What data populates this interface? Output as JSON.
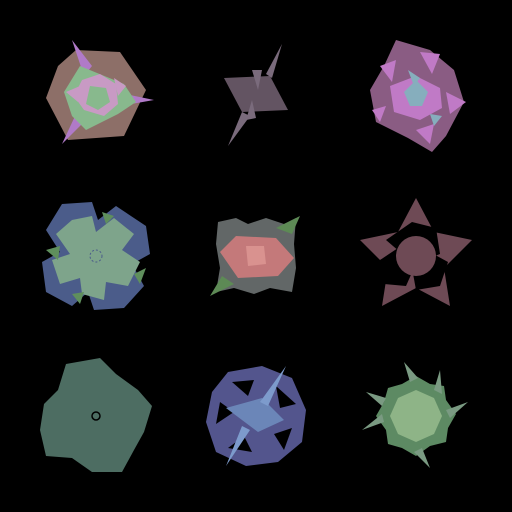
{
  "background_color": "#000000",
  "shapes": [
    {
      "id": "hexagon-rosette",
      "name": "hexagon-rosette-shape",
      "colors": {
        "outer": "#8d6f68",
        "mid": "#c89ac4",
        "inner": "#88b98d",
        "spike": "#b07ac8"
      }
    },
    {
      "id": "spiked-parallelogram",
      "name": "spiked-parallelogram-shape",
      "colors": {
        "body": "#635462",
        "spike": "#7a6b7c"
      }
    },
    {
      "id": "pink-lobed-rosette",
      "name": "pink-lobed-rosette-shape",
      "colors": {
        "outer": "#8a5c83",
        "petal": "#c07ac6",
        "inner": "#86aebd"
      }
    },
    {
      "id": "blue-gear-flower",
      "name": "blue-gear-flower-shape",
      "colors": {
        "outer": "#4b5c8a",
        "inner": "#7ea48b",
        "leaf": "#5f8f5c"
      }
    },
    {
      "id": "grey-rectangle-pink-hexagon",
      "name": "grey-rectangle-pink-hexagon-shape",
      "colors": {
        "outer": "#626767",
        "inner": "#c4797a",
        "center": "#d9928f",
        "spike": "#5d8a55"
      }
    },
    {
      "id": "mauve-pentagram",
      "name": "mauve-pentagram-shape",
      "colors": {
        "outer": "#6e4a55",
        "hole": "#000000",
        "center": "#6e4a55"
      }
    },
    {
      "id": "teal-rounded-cross",
      "name": "teal-rounded-cross-shape",
      "colors": {
        "outer": "#4d6d62",
        "ring": "#000000"
      }
    },
    {
      "id": "blue-disc-diamond",
      "name": "blue-disc-diamond-shape",
      "colors": {
        "outer": "#53558d",
        "hole": "#000000",
        "inner": "#6b86b8",
        "spike": "#7d9bcc"
      }
    },
    {
      "id": "green-spiky-burst",
      "name": "green-spiky-burst-shape",
      "colors": {
        "outer": "#5d8a63",
        "inner": "#8eb487",
        "spike": "#7a9a82"
      }
    }
  ]
}
